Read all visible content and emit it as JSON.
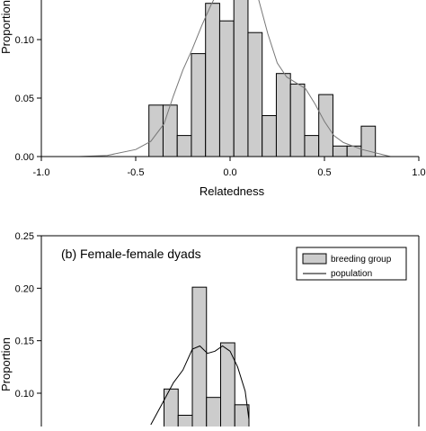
{
  "chart_data": [
    {
      "type": "bar",
      "title": "",
      "xlabel": "Relatedness",
      "ylabel": "Proportion",
      "xlim": [
        -1.0,
        1.0
      ],
      "ylim": [
        0.0,
        0.15
      ],
      "xticks": [
        "-1.0",
        "-0.5",
        "0.0",
        "0.5",
        "1.0"
      ],
      "yticks": [
        "0.00",
        "0.05",
        "0.10"
      ],
      "bin_width": 0.075,
      "series": [
        {
          "kind": "histogram",
          "bins": [
            {
              "x0": -0.43,
              "value": 0.044
            },
            {
              "x0": -0.355,
              "value": 0.044
            },
            {
              "x0": -0.28,
              "value": 0.018
            },
            {
              "x0": -0.205,
              "value": 0.088
            },
            {
              "x0": -0.13,
              "value": 0.131
            },
            {
              "x0": -0.055,
              "value": 0.116
            },
            {
              "x0": 0.02,
              "value": 0.149
            },
            {
              "x0": 0.095,
              "value": 0.106
            },
            {
              "x0": 0.17,
              "value": 0.035
            },
            {
              "x0": 0.245,
              "value": 0.071
            },
            {
              "x0": 0.32,
              "value": 0.062
            },
            {
              "x0": 0.395,
              "value": 0.018
            },
            {
              "x0": 0.47,
              "value": 0.053
            },
            {
              "x0": 0.545,
              "value": 0.009
            },
            {
              "x0": 0.62,
              "value": 0.009
            },
            {
              "x0": 0.695,
              "value": 0.026
            }
          ]
        },
        {
          "kind": "line",
          "x": [
            -0.8,
            -0.65,
            -0.5,
            -0.42,
            -0.35,
            -0.3,
            -0.25,
            -0.2,
            -0.15,
            -0.1,
            -0.05,
            0.0,
            0.05,
            0.1,
            0.15,
            0.2,
            0.25,
            0.3,
            0.35,
            0.4,
            0.45,
            0.5,
            0.55,
            0.6,
            0.7,
            0.8,
            0.85
          ],
          "y": [
            0.0,
            0.001,
            0.006,
            0.013,
            0.028,
            0.052,
            0.074,
            0.092,
            0.112,
            0.13,
            0.145,
            0.155,
            0.16,
            0.155,
            0.135,
            0.105,
            0.08,
            0.068,
            0.063,
            0.058,
            0.045,
            0.03,
            0.018,
            0.012,
            0.006,
            0.002,
            0.0
          ]
        }
      ]
    },
    {
      "type": "bar",
      "title": "(b) Female-female dyads",
      "xlabel": "",
      "ylabel": "Proportion",
      "xlim": [
        -1.0,
        1.0
      ],
      "ylim": [
        0.0,
        0.25
      ],
      "yticks": [
        "0.10",
        "0.15",
        "0.20",
        "0.25"
      ],
      "bin_width": 0.075,
      "legend_position": "top-right",
      "legend": [
        "breeding group",
        "population"
      ],
      "series": [
        {
          "name": "breeding group",
          "kind": "histogram",
          "bins": [
            {
              "x0": -0.35,
              "value": 0.104
            },
            {
              "x0": -0.275,
              "value": 0.079
            },
            {
              "x0": -0.2,
              "value": 0.201
            },
            {
              "x0": -0.125,
              "value": 0.096
            },
            {
              "x0": -0.05,
              "value": 0.148
            },
            {
              "x0": 0.025,
              "value": 0.089
            }
          ]
        },
        {
          "name": "population",
          "kind": "line",
          "x": [
            -0.42,
            -0.36,
            -0.3,
            -0.25,
            -0.2,
            -0.16,
            -0.12,
            -0.08,
            -0.04,
            0.0,
            0.04,
            0.08,
            0.1
          ],
          "y": [
            0.07,
            0.09,
            0.11,
            0.122,
            0.142,
            0.145,
            0.138,
            0.14,
            0.145,
            0.14,
            0.125,
            0.102,
            0.075
          ]
        }
      ]
    }
  ]
}
